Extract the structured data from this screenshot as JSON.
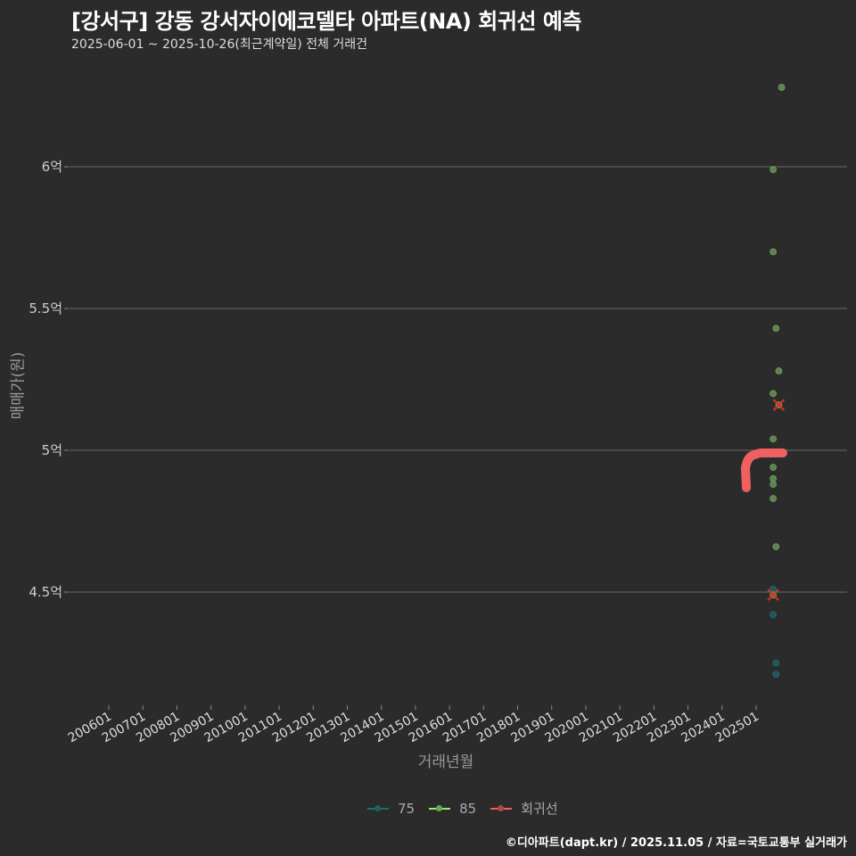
{
  "header": {
    "title": "[강서구] 강동 강서자이에코델타 아파트(NA) 회귀선 예측",
    "subtitle": "2025-06-01 ~ 2025-10-26(최근계약일) 전체 거래건"
  },
  "axes": {
    "ylabel": "매매가(원)",
    "xlabel": "거래년월"
  },
  "legend": {
    "items": [
      {
        "label": "75",
        "color": "#1f6f6f"
      },
      {
        "label": "85",
        "color": "#90ee70"
      },
      {
        "label": "회귀선",
        "color": "#f06060"
      }
    ]
  },
  "footer": "©디아파트(dapt.kr) / 2025.11.05 / 자료=국토교통부 실거래가",
  "chart_data": {
    "type": "scatter",
    "title": "[강서구] 강동 강서자이에코델타 아파트(NA) 회귀선 예측",
    "subtitle": "2025-06-01 ~ 2025-10-26(최근계약일) 전체 거래건",
    "xlabel": "거래년월",
    "ylabel": "매매가(원)",
    "x_ticks": [
      "200601",
      "200701",
      "200801",
      "200901",
      "201001",
      "201101",
      "201201",
      "201301",
      "201401",
      "201501",
      "201601",
      "201701",
      "201801",
      "201901",
      "202001",
      "202101",
      "202201",
      "202301",
      "202401",
      "202501"
    ],
    "y_ticks": [
      {
        "value": 4.5,
        "label": "4.5억"
      },
      {
        "value": 5.0,
        "label": "5억"
      },
      {
        "value": 5.5,
        "label": "5.5억"
      },
      {
        "value": 6.0,
        "label": "6억"
      }
    ],
    "ylim": [
      4.1,
      6.35
    ],
    "grid": "horizontal",
    "legend_position": "bottom",
    "series": [
      {
        "name": "75",
        "color": "#1f6f6f",
        "points": [
          {
            "x": "202507",
            "y": 4.51
          },
          {
            "x": "202507",
            "y": 4.42
          },
          {
            "x": "202508",
            "y": 4.25
          },
          {
            "x": "202508",
            "y": 4.21
          }
        ]
      },
      {
        "name": "85",
        "color": "#7fc26b",
        "points": [
          {
            "x": "202510",
            "y": 6.28
          },
          {
            "x": "202507",
            "y": 5.99
          },
          {
            "x": "202507",
            "y": 5.7
          },
          {
            "x": "202508",
            "y": 5.43
          },
          {
            "x": "202509",
            "y": 5.28
          },
          {
            "x": "202507",
            "y": 5.2
          },
          {
            "x": "202509",
            "y": 5.16
          },
          {
            "x": "202507",
            "y": 5.04
          },
          {
            "x": "202507",
            "y": 4.94
          },
          {
            "x": "202507",
            "y": 4.9
          },
          {
            "x": "202507",
            "y": 4.88
          },
          {
            "x": "202507",
            "y": 4.83
          },
          {
            "x": "202508",
            "y": 4.66
          },
          {
            "x": "202507",
            "y": 4.49
          }
        ]
      },
      {
        "name": "회귀선",
        "color": "#f06060",
        "type": "line",
        "points": [
          {
            "x": "202411",
            "y": 4.86
          },
          {
            "x": "202411",
            "y": 4.94
          },
          {
            "x": "202501",
            "y": 4.99
          },
          {
            "x": "202510",
            "y": 4.99
          }
        ]
      }
    ],
    "markers": [
      {
        "type": "x",
        "color": "#e03020",
        "x": "202509",
        "y": 5.16
      },
      {
        "type": "x",
        "color": "#e03020",
        "x": "202507",
        "y": 4.49
      }
    ]
  }
}
